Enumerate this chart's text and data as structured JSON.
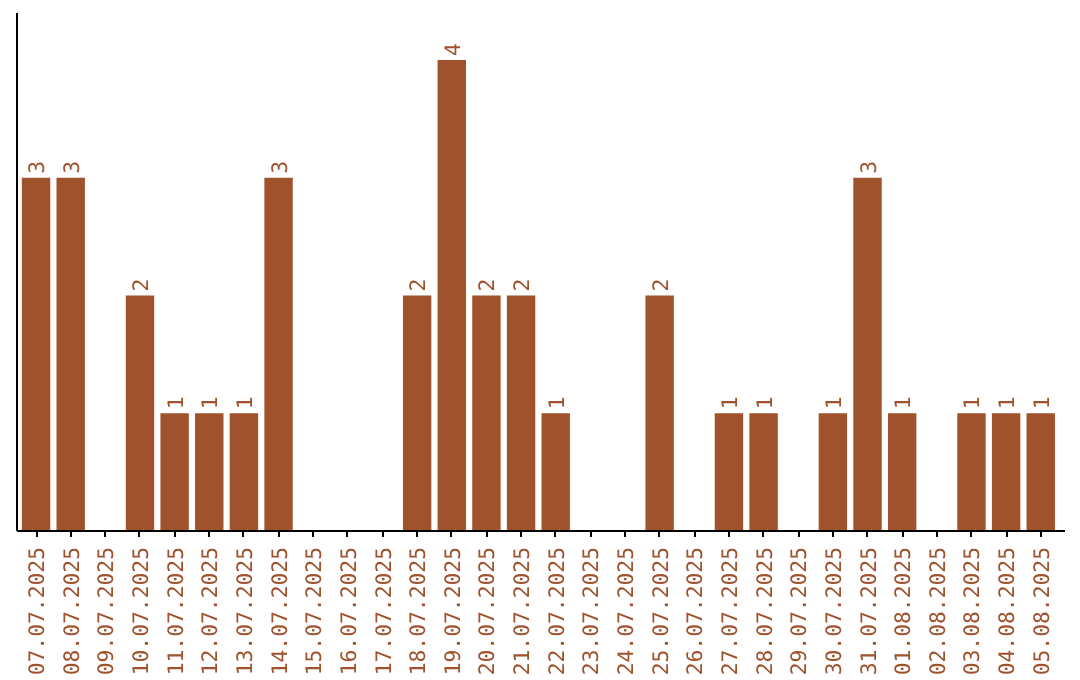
{
  "chart_data": {
    "type": "bar",
    "categories": [
      "07.07.2025",
      "08.07.2025",
      "09.07.2025",
      "10.07.2025",
      "11.07.2025",
      "12.07.2025",
      "13.07.2025",
      "14.07.2025",
      "15.07.2025",
      "16.07.2025",
      "17.07.2025",
      "18.07.2025",
      "19.07.2025",
      "20.07.2025",
      "21.07.2025",
      "22.07.2025",
      "23.07.2025",
      "24.07.2025",
      "25.07.2025",
      "26.07.2025",
      "27.07.2025",
      "28.07.2025",
      "29.07.2025",
      "30.07.2025",
      "31.07.2025",
      "01.08.2025",
      "02.08.2025",
      "03.08.2025",
      "04.08.2025",
      "05.08.2025"
    ],
    "values": [
      3,
      3,
      0,
      2,
      1,
      1,
      1,
      3,
      0,
      0,
      0,
      2,
      4,
      2,
      2,
      1,
      0,
      0,
      2,
      0,
      1,
      1,
      0,
      1,
      3,
      1,
      0,
      1,
      1,
      1
    ],
    "value_labels": [
      "3",
      "3",
      null,
      "2",
      "1",
      "1",
      "1",
      "3",
      null,
      null,
      null,
      "2",
      "4",
      "2",
      "2",
      "1",
      null,
      null,
      "2",
      null,
      "1",
      "1",
      null,
      "1",
      "3",
      "1",
      null,
      "1",
      "1",
      "1"
    ],
    "color": "#a0522d",
    "grid": false,
    "tick_labels": "x"
  }
}
